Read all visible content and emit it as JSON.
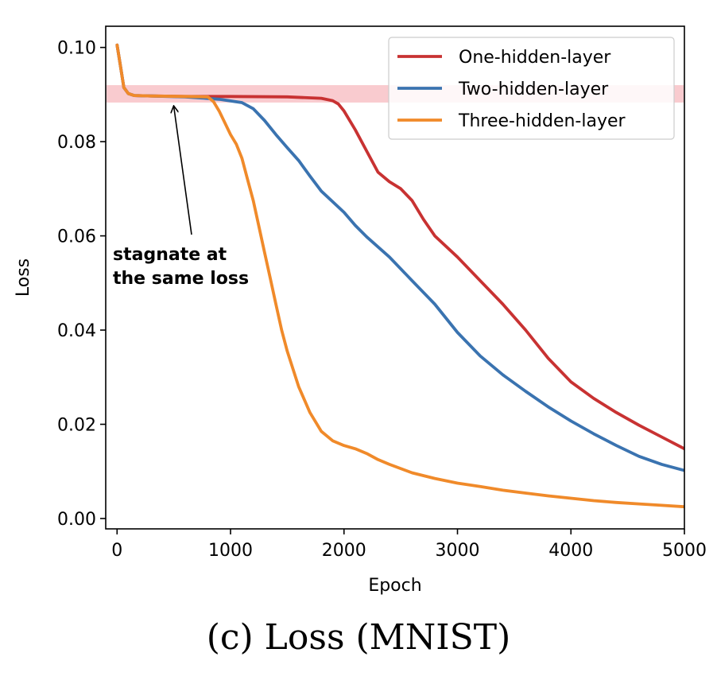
{
  "caption": "(c) Loss (MNIST)",
  "chart_data": {
    "type": "line",
    "title": "",
    "xlabel": "Epoch",
    "ylabel": "Loss",
    "xlim": [
      -100,
      5000
    ],
    "ylim": [
      -0.0022,
      0.1045
    ],
    "xticks": [
      0,
      1000,
      2000,
      3000,
      4000,
      5000
    ],
    "xtick_labels": [
      "0",
      "1000",
      "2000",
      "3000",
      "4000",
      "5000"
    ],
    "yticks": [
      0.0,
      0.02,
      0.04,
      0.06,
      0.08,
      0.1
    ],
    "ytick_labels": [
      "0.00",
      "0.02",
      "0.04",
      "0.06",
      "0.08",
      "0.10"
    ],
    "grid": false,
    "legend_position": "upper-right",
    "highlight_band": {
      "y_range": [
        0.0883,
        0.092
      ],
      "color": "#f4a0a8"
    },
    "annotation": {
      "lines": [
        "stagnate at",
        "the same loss"
      ],
      "arrow_target": [
        500,
        0.0888
      ]
    },
    "series": [
      {
        "name": "One-hidden-layer",
        "color": "#c83232",
        "x": [
          0,
          30,
          60,
          100,
          150,
          300,
          600,
          1000,
          1500,
          1800,
          1900,
          1950,
          2000,
          2100,
          2200,
          2300,
          2400,
          2500,
          2600,
          2700,
          2800,
          3000,
          3200,
          3400,
          3600,
          3800,
          4000,
          4200,
          4400,
          4600,
          4800,
          5000
        ],
        "y": [
          0.1005,
          0.096,
          0.0915,
          0.0902,
          0.0898,
          0.0897,
          0.0896,
          0.0896,
          0.0895,
          0.0892,
          0.0887,
          0.088,
          0.0865,
          0.0825,
          0.078,
          0.0735,
          0.0715,
          0.07,
          0.0675,
          0.0635,
          0.06,
          0.0555,
          0.0505,
          0.0455,
          0.04,
          0.034,
          0.029,
          0.0255,
          0.0225,
          0.0198,
          0.0173,
          0.0148
        ]
      },
      {
        "name": "Two-hidden-layer",
        "color": "#3a73b0",
        "x": [
          0,
          30,
          60,
          100,
          150,
          300,
          600,
          900,
          1100,
          1200,
          1300,
          1400,
          1500,
          1600,
          1700,
          1800,
          2000,
          2100,
          2200,
          2400,
          2600,
          2800,
          3000,
          3200,
          3400,
          3600,
          3800,
          4000,
          4200,
          4400,
          4600,
          4800,
          5000
        ],
        "y": [
          0.1005,
          0.096,
          0.0915,
          0.0902,
          0.0898,
          0.0897,
          0.0895,
          0.089,
          0.0883,
          0.087,
          0.0845,
          0.0815,
          0.0787,
          0.076,
          0.0727,
          0.0695,
          0.065,
          0.0622,
          0.0598,
          0.0555,
          0.0505,
          0.0455,
          0.0395,
          0.0345,
          0.0305,
          0.027,
          0.0237,
          0.0207,
          0.018,
          0.0155,
          0.0132,
          0.0115,
          0.0102
        ]
      },
      {
        "name": "Three-hidden-layer",
        "color": "#f08a2a",
        "x": [
          0,
          30,
          60,
          100,
          150,
          300,
          600,
          800,
          850,
          900,
          950,
          1000,
          1050,
          1100,
          1150,
          1200,
          1250,
          1300,
          1350,
          1400,
          1450,
          1500,
          1600,
          1700,
          1800,
          1900,
          2000,
          2100,
          2200,
          2300,
          2400,
          2600,
          2800,
          3000,
          3200,
          3400,
          3600,
          3800,
          4000,
          4200,
          4400,
          4600,
          4800,
          5000
        ],
        "y": [
          0.1005,
          0.096,
          0.0915,
          0.0902,
          0.0898,
          0.0897,
          0.0896,
          0.0895,
          0.0885,
          0.0865,
          0.084,
          0.0815,
          0.0795,
          0.0765,
          0.072,
          0.0675,
          0.062,
          0.0565,
          0.051,
          0.0455,
          0.04,
          0.0355,
          0.028,
          0.0225,
          0.0185,
          0.0165,
          0.0155,
          0.0148,
          0.0138,
          0.0125,
          0.0115,
          0.0097,
          0.0085,
          0.0075,
          0.0068,
          0.006,
          0.0054,
          0.0048,
          0.0043,
          0.0038,
          0.0034,
          0.0031,
          0.0028,
          0.0025
        ]
      }
    ]
  }
}
